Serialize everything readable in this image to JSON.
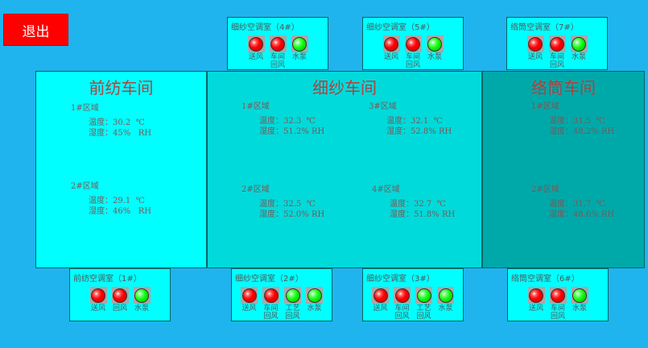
{
  "exit_label": "退出",
  "colors": {
    "background": "#1fb4ee",
    "on": "#ff0000",
    "off": "#00ee00"
  },
  "workshops": [
    {
      "title": "前纺车间",
      "color": "#00ffff",
      "zones": [
        {
          "name": "1#区域",
          "temp": "温度：30.2  ℃",
          "hum": "湿度：45%   RH"
        },
        {
          "name": "2#区域",
          "temp": "温度：29.1  ℃",
          "hum": "湿度：46%   RH"
        }
      ]
    },
    {
      "title": "细纱车间",
      "color": "#00dada",
      "zones": [
        {
          "name": "1#区域",
          "temp": "温度：32.3  ℃",
          "hum": "湿度：51.2% RH"
        },
        {
          "name": "2#区域",
          "temp": "温度：32.5  ℃",
          "hum": "湿度：52.0% RH"
        },
        {
          "name": "3#区域",
          "temp": "温度：32.1  ℃",
          "hum": "湿度：52.8% RH"
        },
        {
          "name": "4#区域",
          "temp": "温度：32.7  ℃",
          "hum": "湿度：51.8% RH"
        }
      ]
    },
    {
      "title": "络筒车间",
      "color": "#00a9a9",
      "zones": [
        {
          "name": "1#区域",
          "temp": "温度：31.5  ℃",
          "hum": "湿度：48.2% RH"
        },
        {
          "name": "2#区域",
          "temp": "温度：31.7  ℃",
          "hum": "湿度：48.6% RH"
        }
      ]
    }
  ],
  "ac_rooms": [
    {
      "title": "细纱空调室（4#）",
      "lamps": [
        {
          "label": "送风",
          "state": "red"
        },
        {
          "label": "车间回风",
          "state": "red"
        },
        {
          "label": "水泵",
          "state": "green"
        }
      ]
    },
    {
      "title": "细纱空调室（5#）",
      "lamps": [
        {
          "label": "送风",
          "state": "red"
        },
        {
          "label": "车间回风",
          "state": "red"
        },
        {
          "label": "水泵",
          "state": "green"
        }
      ]
    },
    {
      "title": "络筒空调室（7#）",
      "lamps": [
        {
          "label": "送风",
          "state": "red"
        },
        {
          "label": "车间回风",
          "state": "red"
        },
        {
          "label": "水泵",
          "state": "green"
        }
      ]
    },
    {
      "title": "前纺空调室（1#）",
      "lamps": [
        {
          "label": "送风",
          "state": "red"
        },
        {
          "label": "回风",
          "state": "red"
        },
        {
          "label": "水泵",
          "state": "green"
        }
      ]
    },
    {
      "title": "细纱空调室（2#）",
      "lamps": [
        {
          "label": "送风",
          "state": "red"
        },
        {
          "label": "车间回风",
          "state": "red"
        },
        {
          "label": "工艺回风",
          "state": "green"
        },
        {
          "label": "水泵",
          "state": "green"
        }
      ]
    },
    {
      "title": "细纱空调室（3#）",
      "lamps": [
        {
          "label": "送风",
          "state": "red"
        },
        {
          "label": "车间回风",
          "state": "red"
        },
        {
          "label": "工艺回风",
          "state": "green"
        },
        {
          "label": "水泵",
          "state": "green"
        }
      ]
    },
    {
      "title": "络筒空调室（6#）",
      "lamps": [
        {
          "label": "送风",
          "state": "red"
        },
        {
          "label": "车间回风",
          "state": "red"
        },
        {
          "label": "水泵",
          "state": "green"
        }
      ]
    }
  ]
}
